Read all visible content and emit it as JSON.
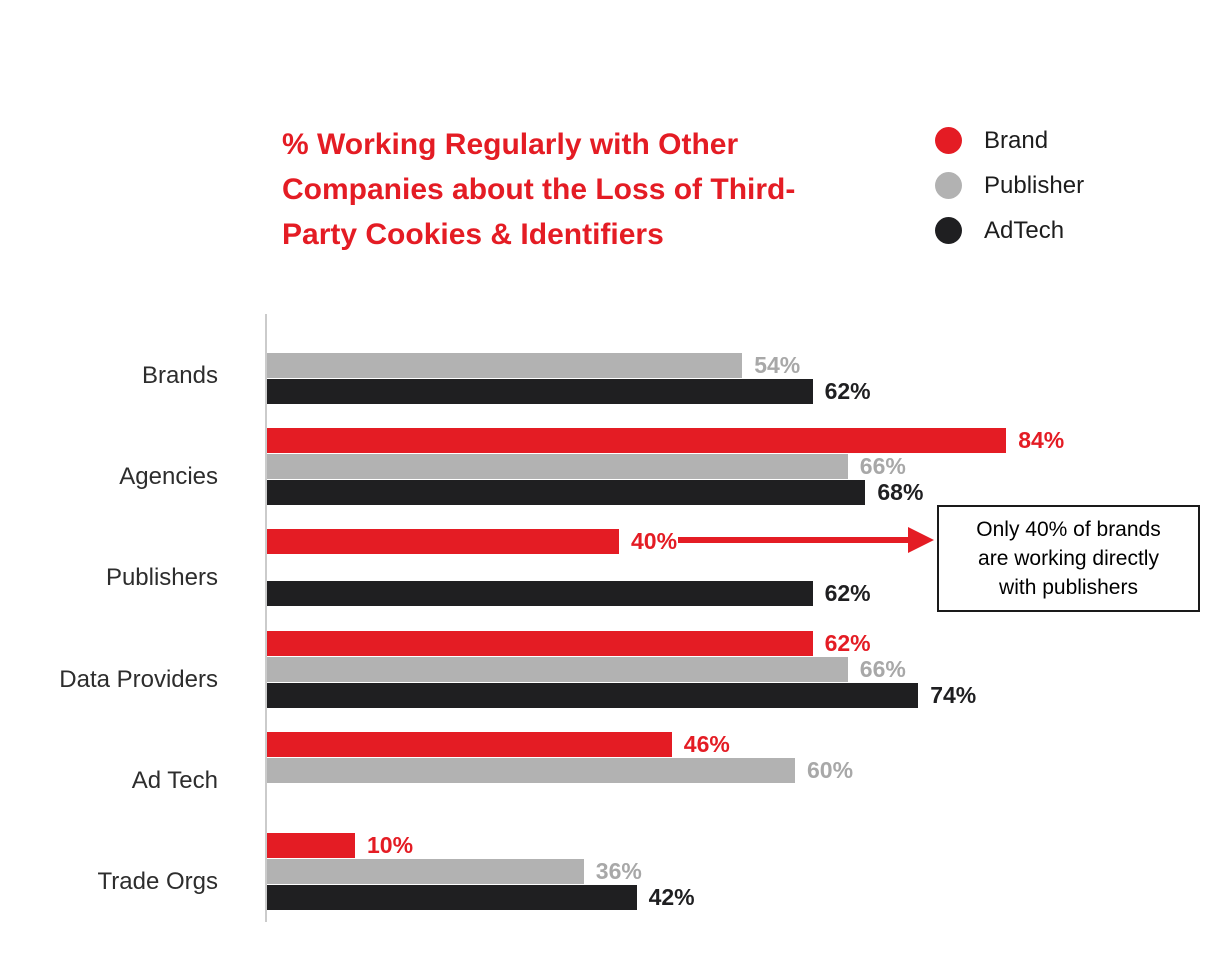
{
  "title": {
    "lines": [
      "% Working Regularly with Other",
      "Companies about the Loss of Third-",
      "Party Cookies & Identifiers"
    ],
    "color": "#e41c24"
  },
  "legend": {
    "items": [
      {
        "label": "Brand",
        "color": "#e41c24"
      },
      {
        "label": "Publisher",
        "color": "#b2b2b2"
      },
      {
        "label": "AdTech",
        "color": "#1f1f21"
      }
    ]
  },
  "chart_data": {
    "type": "bar",
    "orientation": "horizontal",
    "title": "% Working Regularly with Other Companies about the Loss of Third-Party Cookies & Identifiers",
    "categories": [
      "Brands",
      "Agencies",
      "Publishers",
      "Data Providers",
      "Ad Tech",
      "Trade Orgs"
    ],
    "series": [
      {
        "name": "Brand",
        "color": "#e41c24",
        "label_color": "#e41c24",
        "values": [
          null,
          84,
          40,
          62,
          46,
          10
        ]
      },
      {
        "name": "Publisher",
        "color": "#b2b2b2",
        "label_color": "#a8a8a8",
        "values": [
          54,
          66,
          null,
          66,
          60,
          36
        ]
      },
      {
        "name": "AdTech",
        "color": "#1f1f21",
        "label_color": "#1f1f21",
        "values": [
          62,
          68,
          62,
          74,
          null,
          42
        ]
      }
    ],
    "value_suffix": "%",
    "xlim": [
      0,
      100
    ],
    "grid": false,
    "axis_color": "#cbcbcb",
    "legend_position": "top-right",
    "value_labels": "end-of-bar, colored per series"
  },
  "annotation": {
    "lines": [
      "Only 40% of brands",
      "are working directly",
      "with publishers"
    ],
    "arrow_color": "#e41c24",
    "box_border_color": "#1a1a1a"
  }
}
